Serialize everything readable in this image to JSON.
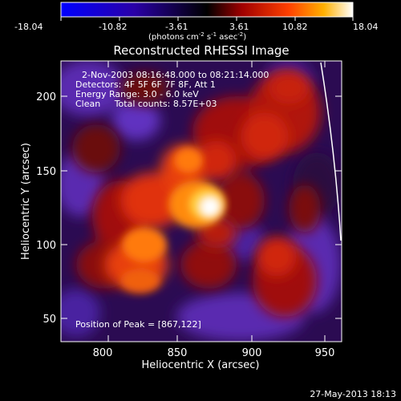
{
  "colorbar": {
    "ticks": [
      "-18.04",
      "-10.82",
      "-3.61",
      "3.61",
      "10.82",
      "18.04"
    ],
    "unit_label_parts": {
      "pre": "(photons cm",
      "sup1": "-2",
      "mid1": " s",
      "sup2": "-1",
      "mid2": " asec",
      "sup3": "-2",
      "post": ")"
    },
    "colors": {
      "low": "#0000ff",
      "mid": "#000000",
      "high": "#ffffff"
    }
  },
  "title": "Reconstructed RHESSI Image",
  "info": {
    "time_range": "2-Nov-2003 08:16:48.000 to 08:21:14.000",
    "detectors": "Detectors: 4F 5F 6F 7F 8F, Att 1",
    "energy": "Energy Range: 3.0 - 6.0 keV",
    "clean": "Clean     Total counts: 8.57E+03",
    "peak": "Position of Peak = [867,122]"
  },
  "axes": {
    "xlabel": "Heliocentric X (arcsec)",
    "ylabel": "Heliocentric Y (arcsec)",
    "xticks": [
      "800",
      "850",
      "900",
      "950"
    ],
    "yticks": [
      "200",
      "150",
      "100",
      "50"
    ]
  },
  "footer_timestamp": "27-May-2013 18:13"
}
